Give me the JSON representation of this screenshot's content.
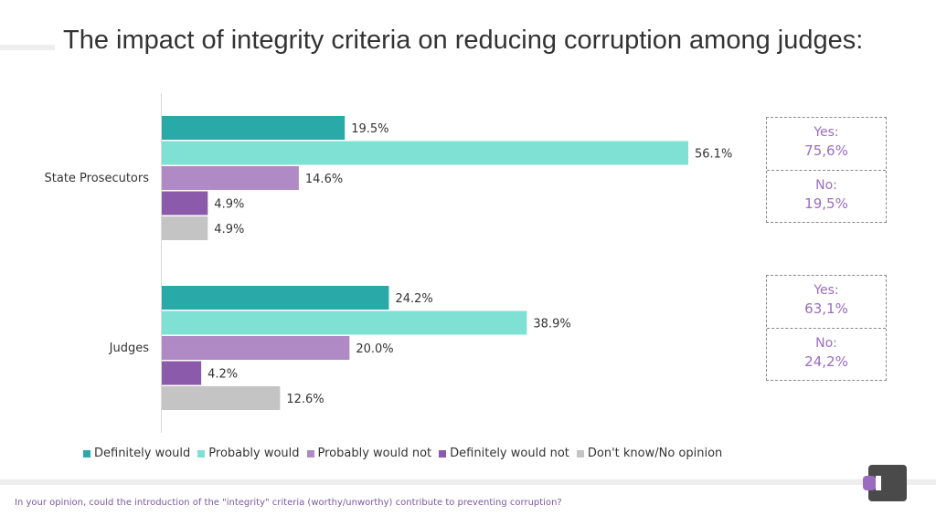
{
  "page": {
    "title": "The impact of integrity criteria on reducing corruption among judges:",
    "footnote": "In your opinion, could the introduction of the \"integrity\" criteria (worthy/unworthy) contribute to preventing corruption?"
  },
  "chart_data": {
    "type": "bar",
    "orientation": "horizontal",
    "title": "The impact of integrity criteria on reducing corruption among judges:",
    "categories": [
      "State Prosecutors",
      "Judges"
    ],
    "series": [
      {
        "name": "Definitely would",
        "color": "#2aa9a9",
        "values": [
          19.5,
          24.2
        ],
        "labels": [
          "19.5%",
          "24.2%"
        ]
      },
      {
        "name": "Probably would",
        "color": "#7fe0d4",
        "values": [
          56.1,
          38.9
        ],
        "labels": [
          "56.1%",
          "38.9%"
        ]
      },
      {
        "name": "Probably would not",
        "color": "#b08ac4",
        "values": [
          14.6,
          20.0
        ],
        "labels": [
          "14.6%",
          "20.0%"
        ]
      },
      {
        "name": "Definitely would not",
        "color": "#8c5aaa",
        "values": [
          4.9,
          4.2
        ],
        "labels": [
          "4.9%",
          "4.2%"
        ]
      },
      {
        "name": "Don't know/No opinion",
        "color": "#c4c4c4",
        "values": [
          4.9,
          12.6
        ],
        "labels": [
          "4.9%",
          "12.6%"
        ]
      }
    ],
    "xlim": [
      0,
      60
    ],
    "grid": false,
    "legend_position": "bottom"
  },
  "summary": [
    {
      "yes_label": "Yes:",
      "yes_value": "75,6%",
      "no_label": "No:",
      "no_value": "19,5%"
    },
    {
      "yes_label": "Yes:",
      "yes_value": "63,1%",
      "no_label": "No:",
      "no_value": "24,2%"
    }
  ],
  "colors": {
    "accent": "#9a6cc0",
    "logo_dark": "#4a4a4a"
  }
}
